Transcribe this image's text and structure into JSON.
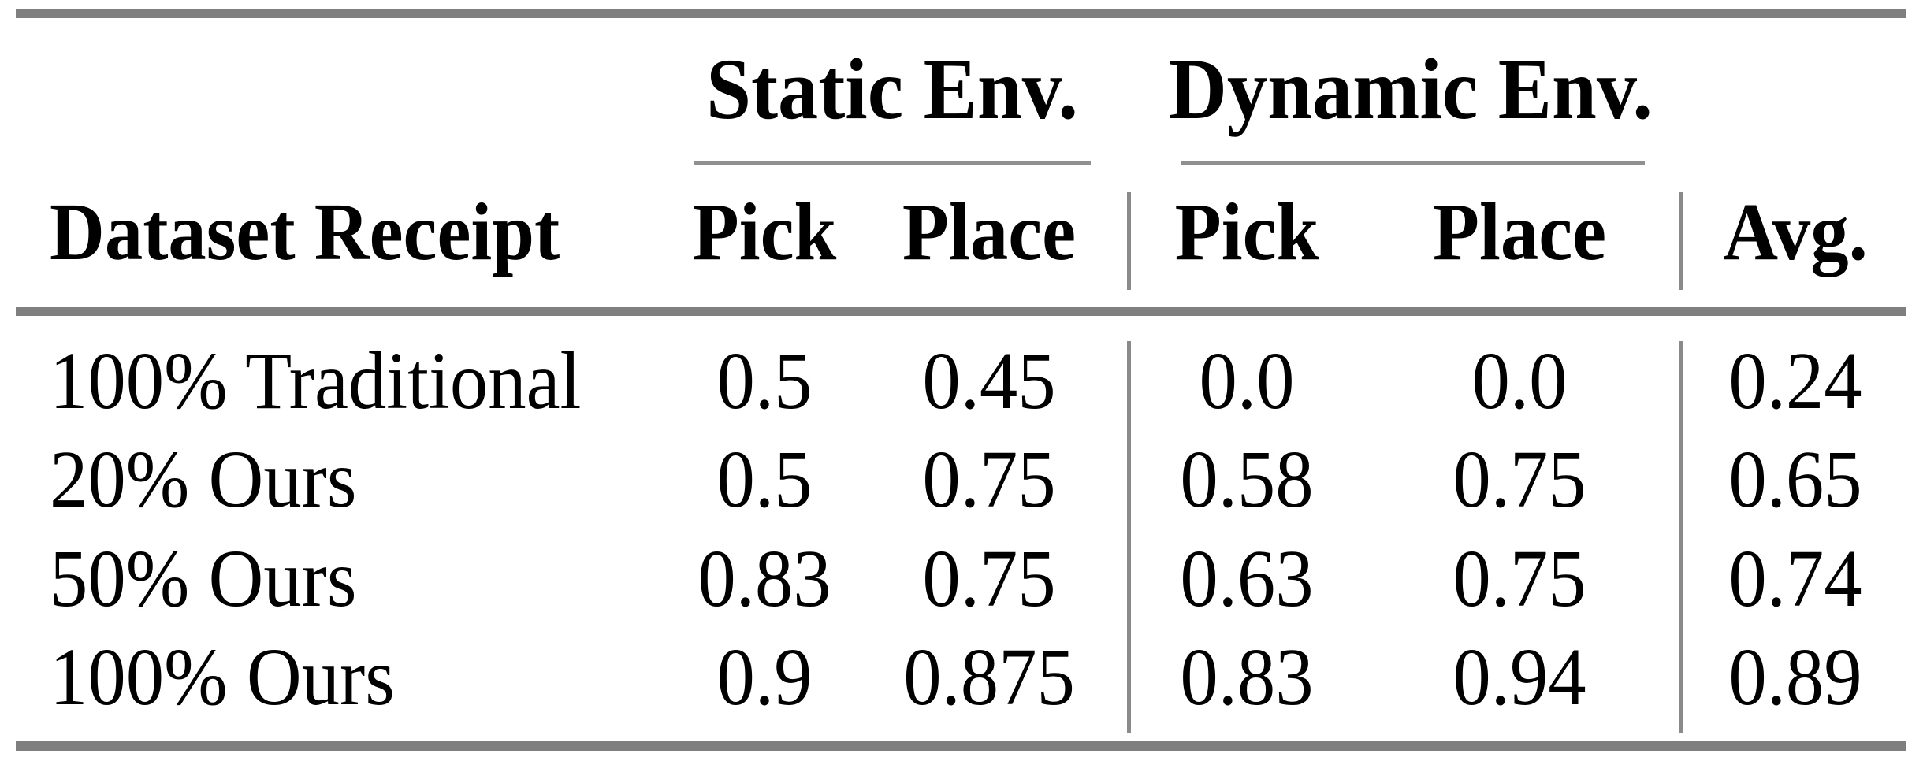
{
  "figure": {
    "type": "academic-results-table",
    "background": "#ffffff",
    "text_color": "#000000",
    "rule_color": "#7f7f7f",
    "thin_rule_color": "#909090",
    "separator_color": "#8a8a8a"
  },
  "table": {
    "groups": [
      {
        "label": "Static Env."
      },
      {
        "label": "Dynamic Env."
      }
    ],
    "headers": {
      "row_header": "Dataset Receipt",
      "static_pick": "Pick",
      "static_place": "Place",
      "dynamic_pick": "Pick",
      "dynamic_place": "Place",
      "avg": "Avg."
    },
    "rows": [
      {
        "label": "100% Traditional",
        "static_pick": "0.5",
        "static_place": "0.45",
        "dynamic_pick": "0.0",
        "dynamic_place": "0.0",
        "avg": "0.24"
      },
      {
        "label": "20% Ours",
        "static_pick": "0.5",
        "static_place": "0.75",
        "dynamic_pick": "0.58",
        "dynamic_place": "0.75",
        "avg": "0.65"
      },
      {
        "label": "50% Ours",
        "static_pick": "0.83",
        "static_place": "0.75",
        "dynamic_pick": "0.63",
        "dynamic_place": "0.75",
        "avg": "0.74"
      },
      {
        "label": "100% Ours",
        "static_pick": "0.9",
        "static_place": "0.875",
        "dynamic_pick": "0.83",
        "dynamic_place": "0.94",
        "avg": "0.89"
      }
    ]
  },
  "chart_data": {
    "type": "table",
    "columns": [
      "Dataset Receipt",
      "Static Env. Pick",
      "Static Env. Place",
      "Dynamic Env. Pick",
      "Dynamic Env. Place",
      "Avg."
    ],
    "rows": [
      [
        "100% Traditional",
        0.5,
        0.45,
        0.0,
        0.0,
        0.24
      ],
      [
        "20% Ours",
        0.5,
        0.75,
        0.58,
        0.75,
        0.65
      ],
      [
        "50% Ours",
        0.83,
        0.75,
        0.63,
        0.75,
        0.74
      ],
      [
        "100% Ours",
        0.9,
        0.875,
        0.83,
        0.94,
        0.89
      ]
    ]
  }
}
